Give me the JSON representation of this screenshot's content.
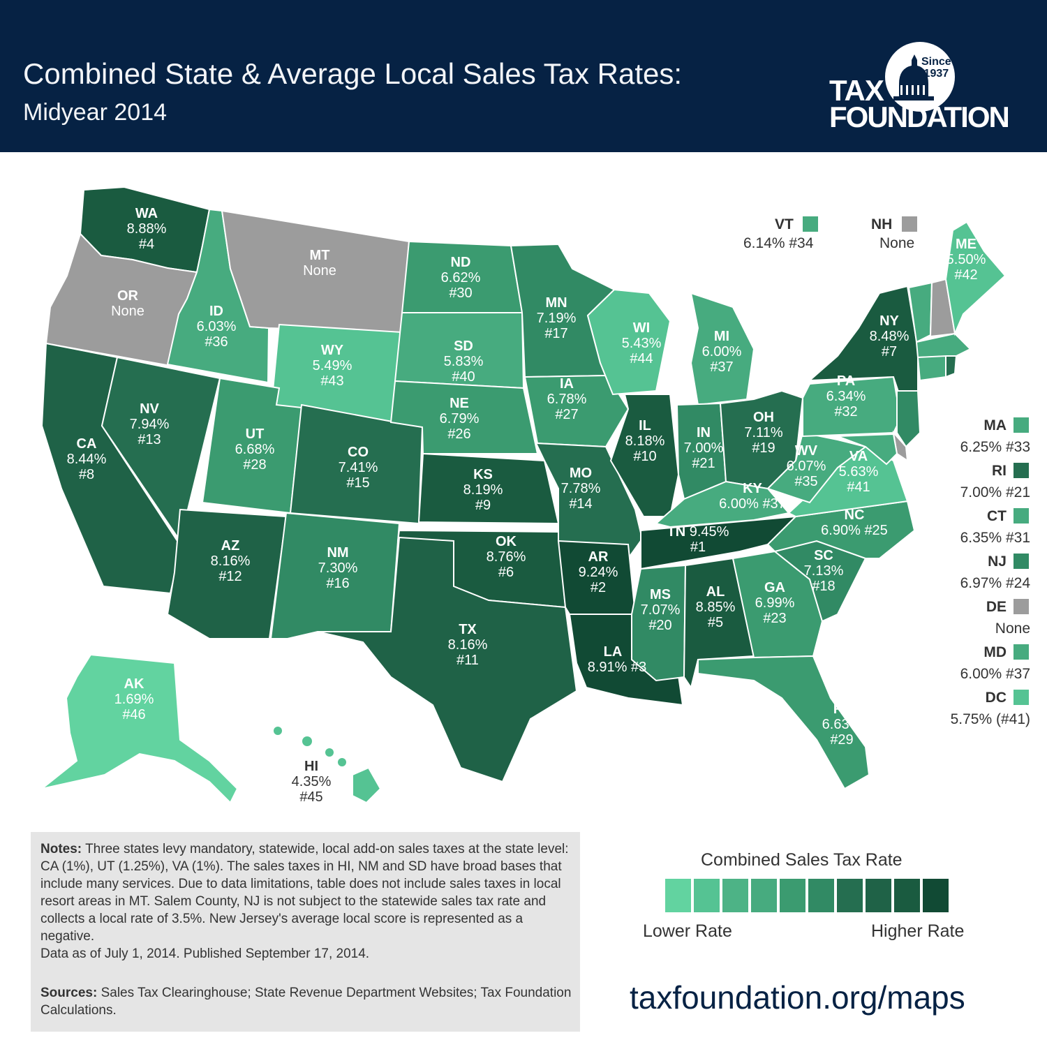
{
  "header": {
    "title_line1": "Combined State & Average Local Sales Tax Rates:",
    "title_line2": "Midyear 2014",
    "logo_since": "Since",
    "logo_year": "1937",
    "logo_tax": "TAX",
    "logo_foundation": "FOUNDATION"
  },
  "colors": {
    "header_bg": "#062244",
    "none_gray": "#9c9c9c",
    "scale": [
      "#62d3a0",
      "#55c393",
      "#4db386",
      "#47ab7f",
      "#3b9b70",
      "#318a64",
      "#256e50",
      "#1f6247",
      "#1a5b40",
      "#114a34"
    ]
  },
  "states": {
    "WA": {
      "name": "WA",
      "rate": "8.88%",
      "rank": "#4",
      "color": "#1a5b40"
    },
    "OR": {
      "name": "OR",
      "rate": "None",
      "rank": "",
      "color": "#9c9c9c"
    },
    "CA": {
      "name": "CA",
      "rate": "8.44%",
      "rank": "#8",
      "color": "#1f6247"
    },
    "ID": {
      "name": "ID",
      "rate": "6.03%",
      "rank": "#36",
      "color": "#47ab7f"
    },
    "NV": {
      "name": "NV",
      "rate": "7.94%",
      "rank": "#13",
      "color": "#256e50"
    },
    "MT": {
      "name": "MT",
      "rate": "None",
      "rank": "",
      "color": "#9c9c9c"
    },
    "WY": {
      "name": "WY",
      "rate": "5.49%",
      "rank": "#43",
      "color": "#55c393"
    },
    "UT": {
      "name": "UT",
      "rate": "6.68%",
      "rank": "#28",
      "color": "#3b9b70"
    },
    "AZ": {
      "name": "AZ",
      "rate": "8.16%",
      "rank": "#12",
      "color": "#1f6247"
    },
    "CO": {
      "name": "CO",
      "rate": "7.41%",
      "rank": "#15",
      "color": "#256e50"
    },
    "NM": {
      "name": "NM",
      "rate": "7.30%",
      "rank": "#16",
      "color": "#318a64"
    },
    "ND": {
      "name": "ND",
      "rate": "6.62%",
      "rank": "#30",
      "color": "#3b9b70"
    },
    "SD": {
      "name": "SD",
      "rate": "5.83%",
      "rank": "#40",
      "color": "#47ab7f"
    },
    "NE": {
      "name": "NE",
      "rate": "6.79%",
      "rank": "#26",
      "color": "#3b9b70"
    },
    "KS": {
      "name": "KS",
      "rate": "8.19%",
      "rank": "#9",
      "color": "#1a5b40"
    },
    "OK": {
      "name": "OK",
      "rate": "8.76%",
      "rank": "#6",
      "color": "#1a5b40"
    },
    "TX": {
      "name": "TX",
      "rate": "8.16%",
      "rank": "#11",
      "color": "#1f6247"
    },
    "MN": {
      "name": "MN",
      "rate": "7.19%",
      "rank": "#17",
      "color": "#318a64"
    },
    "IA": {
      "name": "IA",
      "rate": "6.78%",
      "rank": "#27",
      "color": "#3b9b70"
    },
    "MO": {
      "name": "MO",
      "rate": "7.78%",
      "rank": "#14",
      "color": "#256e50"
    },
    "AR": {
      "name": "AR",
      "rate": "9.24%",
      "rank": "#2",
      "color": "#114a34"
    },
    "LA": {
      "name": "LA",
      "rate": "8.91%",
      "rank": "#3",
      "color": "#114a34"
    },
    "WI": {
      "name": "WI",
      "rate": "5.43%",
      "rank": "#44",
      "color": "#55c393"
    },
    "IL": {
      "name": "IL",
      "rate": "8.18%",
      "rank": "#10",
      "color": "#1a5b40"
    },
    "MI": {
      "name": "MI",
      "rate": "6.00%",
      "rank": "#37",
      "color": "#47ab7f"
    },
    "IN": {
      "name": "IN",
      "rate": "7.00%",
      "rank": "#21",
      "color": "#318a64"
    },
    "OH": {
      "name": "OH",
      "rate": "7.11%",
      "rank": "#19",
      "color": "#256e50"
    },
    "KY": {
      "name": "KY",
      "rate": "6.00% #37",
      "rank": "",
      "color": "#47ab7f"
    },
    "TN": {
      "name": "TN",
      "rate": "9.45%",
      "rank": "#1",
      "color": "#114a34"
    },
    "MS": {
      "name": "MS",
      "rate": "7.07%",
      "rank": "#20",
      "color": "#318a64"
    },
    "AL": {
      "name": "AL",
      "rate": "8.85%",
      "rank": "#5",
      "color": "#1a5b40"
    },
    "GA": {
      "name": "GA",
      "rate": "6.99%",
      "rank": "#23",
      "color": "#3b9b70"
    },
    "FL": {
      "name": "FL",
      "rate": "6.63%",
      "rank": "#29",
      "color": "#3b9b70"
    },
    "SC": {
      "name": "SC",
      "rate": "7.13%",
      "rank": "#18",
      "color": "#318a64"
    },
    "NC": {
      "name": "NC",
      "rate": "6.90% #25",
      "rank": "",
      "color": "#3b9b70"
    },
    "VA": {
      "name": "VA",
      "rate": "5.63%",
      "rank": "#41",
      "color": "#55c393"
    },
    "WV": {
      "name": "WV",
      "rate": "6.07%",
      "rank": "#35",
      "color": "#47ab7f"
    },
    "PA": {
      "name": "PA",
      "rate": "6.34%",
      "rank": "#32",
      "color": "#47ab7f"
    },
    "NY": {
      "name": "NY",
      "rate": "8.48%",
      "rank": "#7",
      "color": "#1a5b40"
    },
    "ME": {
      "name": "ME",
      "rate": "5.50%",
      "rank": "#42",
      "color": "#55c393"
    },
    "AK": {
      "name": "AK",
      "rate": "1.69%",
      "rank": "#46",
      "color": "#62d3a0"
    },
    "HI": {
      "name": "HI",
      "rate": "4.35%",
      "rank": "#45",
      "color": "#55c393"
    }
  },
  "top_callouts": {
    "VT": {
      "name": "VT",
      "value": "6.14% #34",
      "color": "#47ab7f"
    },
    "NH": {
      "name": "NH",
      "value": "None",
      "color": "#9c9c9c"
    }
  },
  "side_callouts": [
    {
      "name": "MA",
      "value": "6.25% #33",
      "color": "#47ab7f"
    },
    {
      "name": "RI",
      "value": "7.00% #21",
      "color": "#256e50"
    },
    {
      "name": "CT",
      "value": "6.35% #31",
      "color": "#47ab7f"
    },
    {
      "name": "NJ",
      "value": "6.97% #24",
      "color": "#318a64"
    },
    {
      "name": "DE",
      "value": "None",
      "color": "#9c9c9c"
    },
    {
      "name": "MD",
      "value": "6.00% #37",
      "color": "#47ab7f"
    },
    {
      "name": "DC",
      "value": "5.75% (#41)",
      "color": "#55c393"
    }
  ],
  "notes": {
    "notes_label": "Notes:",
    "notes_text": "Three states levy mandatory, statewide, local add-on sales taxes at the state level: CA (1%), UT (1.25%), VA (1%). The sales taxes in HI, NM and SD have broad bases that include many services. Due to data limitations, table does not include sales taxes in local resort areas in MT. Salem County, NJ is not subject to the statewide sales tax rate and collects a local rate of 3.5%. New Jersey's average local score is represented as a negative.",
    "data_note": "Data as of July 1, 2014. Published September 17, 2014.",
    "sources_label": "Sources:",
    "sources_text": "Sales Tax Clearinghouse; State Revenue Department Websites; Tax Foundation Calculations."
  },
  "legend": {
    "title": "Combined Sales Tax Rate",
    "low_label": "Lower Rate",
    "high_label": "Higher Rate"
  },
  "footer": {
    "url": "taxfoundation.org/maps"
  }
}
